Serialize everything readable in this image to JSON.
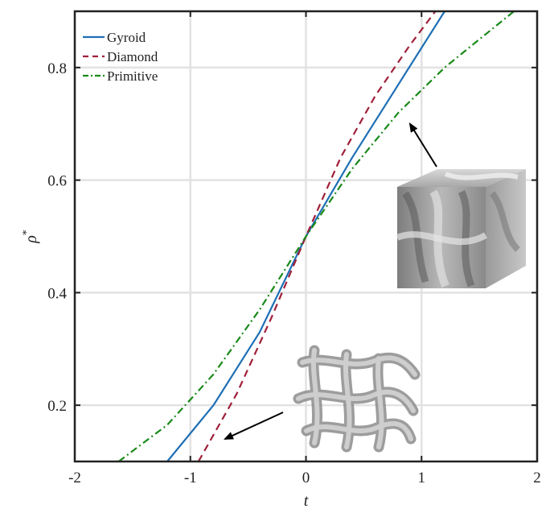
{
  "chart_data": {
    "type": "line",
    "title": "",
    "xlabel": "t",
    "ylabel": "ρ",
    "ylabel_superscript": "*",
    "xlim": [
      -2,
      2
    ],
    "ylim": [
      0.1,
      0.9
    ],
    "xticks": [
      "-2",
      "-1",
      "0",
      "1",
      "2"
    ],
    "yticks": [
      "0.2",
      "0.4",
      "0.6",
      "0.8"
    ],
    "grid": true,
    "legend_position": "top-left",
    "series": [
      {
        "name": "Gyroid",
        "color": "#1f6fb5",
        "style": "solid",
        "x": [
          -1.2,
          -0.8,
          -0.4,
          0,
          0.4,
          0.8,
          1.2
        ],
        "y": [
          0.1,
          0.2,
          0.33,
          0.5,
          0.64,
          0.77,
          0.9
        ]
      },
      {
        "name": "Diamond",
        "color": "#a0203a",
        "style": "dashed",
        "x": [
          -0.93,
          -0.6,
          -0.3,
          0,
          0.3,
          0.6,
          0.9,
          1.12
        ],
        "y": [
          0.1,
          0.22,
          0.355,
          0.5,
          0.64,
          0.75,
          0.84,
          0.9
        ]
      },
      {
        "name": "Primitive",
        "color": "#1a8a1a",
        "style": "dashdot",
        "x": [
          -1.62,
          -1.2,
          -0.8,
          -0.4,
          0,
          0.4,
          0.8,
          1.2,
          1.5,
          1.8
        ],
        "y": [
          0.1,
          0.165,
          0.255,
          0.37,
          0.5,
          0.62,
          0.72,
          0.8,
          0.85,
          0.9
        ]
      }
    ],
    "annotations": [
      {
        "name": "gyroid-unit-cell",
        "arrow_to": [
          0.9,
          0.7
        ]
      },
      {
        "name": "primitive-unit-cell",
        "arrow_to": [
          -0.7,
          0.14
        ]
      }
    ]
  }
}
